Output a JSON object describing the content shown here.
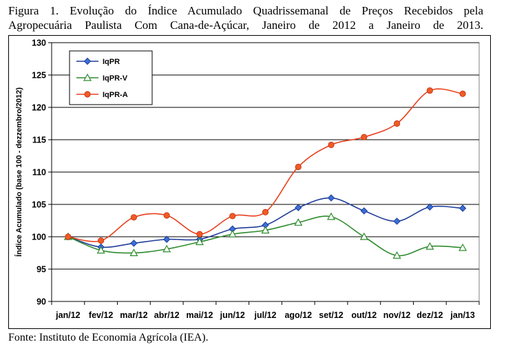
{
  "caption": {
    "line1": "Figura 1. Evolução do Índice Acumulado Quadrissemanal de Preços Recebidos pela",
    "line2": "Agropecuária Paulista Com Cana-de-Açúcar, Janeiro de 2012 a Janeiro de 2013."
  },
  "source": "Fonte: Instituto de Economia Agrícola (IEA).",
  "chart_data": {
    "type": "line",
    "categories": [
      "jan/12",
      "fev/12",
      "mar/12",
      "abr/12",
      "mai/12",
      "jun/12",
      "jul/12",
      "ago/12",
      "set/12",
      "out/12",
      "nov/12",
      "dez/12",
      "jan/13"
    ],
    "ylabel": "Índice Acumulado (base 100 - dezzembro/2012)",
    "xlabel": "",
    "ylim": [
      90,
      130
    ],
    "yticks": [
      "90",
      "95",
      "100",
      "105",
      "110",
      "115",
      "120",
      "125",
      "130"
    ],
    "grid": "horizontal",
    "legend": "top-left",
    "series": [
      {
        "name": "IqPR",
        "color": "#1f3c99",
        "marker": "diamond",
        "marker_fill": "#3b6fd8",
        "values": [
          100.0,
          98.4,
          99.0,
          99.6,
          99.6,
          101.2,
          101.8,
          104.5,
          106.0,
          104.0,
          102.4,
          104.6,
          104.4
        ]
      },
      {
        "name": "IqPR-V",
        "color": "#2e8b2e",
        "marker": "triangle",
        "marker_fill": "#ffffff",
        "values": [
          100.0,
          97.9,
          97.5,
          98.1,
          99.2,
          100.4,
          101.0,
          102.2,
          103.1,
          100.0,
          97.1,
          98.5,
          98.3
        ]
      },
      {
        "name": "IqPR-A",
        "color": "#e8401c",
        "marker": "circle",
        "marker_fill": "#f05a28",
        "values": [
          100.0,
          99.4,
          103.0,
          103.3,
          100.4,
          103.2,
          103.8,
          110.8,
          114.2,
          115.4,
          117.5,
          122.6,
          122.1
        ]
      }
    ]
  }
}
